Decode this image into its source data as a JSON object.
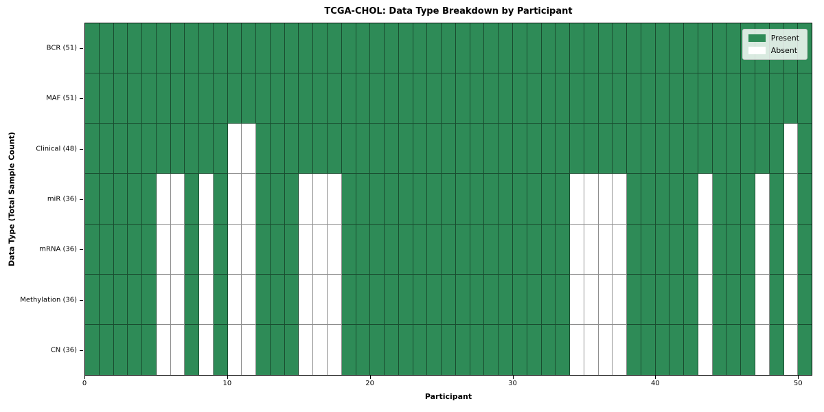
{
  "figure": {
    "title": "TCGA-CHOL: Data Type Breakdown by Participant",
    "xlabel": "Participant",
    "ylabel": "Data Type (Total Sample Count)"
  },
  "chart_data": {
    "type": "heatmap",
    "title": "TCGA-CHOL: Data Type Breakdown by Participant",
    "xlabel": "Participant",
    "ylabel": "Data Type (Total Sample Count)",
    "participants": 51,
    "x_axis": {
      "range": [
        0,
        51
      ],
      "ticks": [
        0,
        10,
        20,
        30,
        40,
        50
      ]
    },
    "colors": {
      "present": "#2e8b57",
      "absent": "#ffffff",
      "grid_line": "rgba(0,0,0,0.45)",
      "axis_border": "#000000"
    },
    "legend": {
      "position": "upper right",
      "entries": [
        {
          "label": "Present",
          "color": "#2e8b57"
        },
        {
          "label": "Absent",
          "color": "#ffffff"
        }
      ]
    },
    "rows": [
      {
        "label": "BCR (51)",
        "data_type": "BCR",
        "present_count": 51,
        "absent_participants": []
      },
      {
        "label": "MAF (51)",
        "data_type": "MAF",
        "present_count": 51,
        "absent_participants": []
      },
      {
        "label": "Clinical (48)",
        "data_type": "Clinical",
        "present_count": 48,
        "absent_participants": [
          10,
          11,
          49
        ]
      },
      {
        "label": "miR (36)",
        "data_type": "miR",
        "present_count": 36,
        "absent_participants": [
          5,
          6,
          8,
          10,
          11,
          15,
          16,
          17,
          34,
          35,
          36,
          37,
          43,
          47,
          49
        ]
      },
      {
        "label": "mRNA (36)",
        "data_type": "mRNA",
        "present_count": 36,
        "absent_participants": [
          5,
          6,
          8,
          10,
          11,
          15,
          16,
          17,
          34,
          35,
          36,
          37,
          43,
          47,
          49
        ]
      },
      {
        "label": "Methylation (36)",
        "data_type": "Methylation",
        "present_count": 36,
        "absent_participants": [
          5,
          6,
          8,
          10,
          11,
          15,
          16,
          17,
          34,
          35,
          36,
          37,
          43,
          47,
          49
        ]
      },
      {
        "label": "CN (36)",
        "data_type": "CN",
        "present_count": 36,
        "absent_participants": [
          5,
          6,
          8,
          10,
          11,
          15,
          16,
          17,
          34,
          35,
          36,
          37,
          43,
          47,
          49
        ]
      }
    ]
  }
}
